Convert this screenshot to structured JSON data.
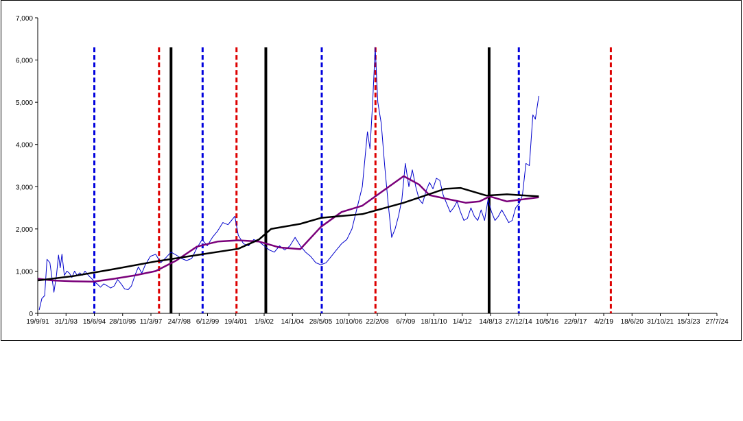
{
  "chart_data": {
    "type": "line",
    "title": "",
    "xlabel": "",
    "ylabel": "",
    "ylim": [
      0,
      7000
    ],
    "y_ticks": [
      0,
      1000,
      2000,
      3000,
      4000,
      5000,
      6000,
      7000
    ],
    "y_tick_labels": [
      "0",
      "1,000",
      "2,000",
      "3,000",
      "4,000",
      "5,000",
      "6,000",
      "7,000"
    ],
    "x_axis": {
      "type": "date",
      "start": "1991-09-19",
      "end": "2024-07-27"
    },
    "x_tick_labels": [
      {
        "date": "1991-09-19",
        "label": "19/9/91"
      },
      {
        "date": "1993-01-31",
        "label": "31/1/93"
      },
      {
        "date": "1994-06-15",
        "label": "15/6/94"
      },
      {
        "date": "1995-10-28",
        "label": "28/10/95"
      },
      {
        "date": "1997-03-11",
        "label": "11/3/97"
      },
      {
        "date": "1998-07-24",
        "label": "24/7/98"
      },
      {
        "date": "1999-12-06",
        "label": "6/12/99"
      },
      {
        "date": "2001-04-19",
        "label": "19/4/01"
      },
      {
        "date": "2002-09-01",
        "label": "1/9/02"
      },
      {
        "date": "2004-01-14",
        "label": "14/1/04"
      },
      {
        "date": "2005-05-28",
        "label": "28/5/05"
      },
      {
        "date": "2006-10-10",
        "label": "10/10/06"
      },
      {
        "date": "2008-02-22",
        "label": "22/2/08"
      },
      {
        "date": "2009-07-06",
        "label": "6/7/09"
      },
      {
        "date": "2010-11-18",
        "label": "18/11/10"
      },
      {
        "date": "2012-04-01",
        "label": "1/4/12"
      },
      {
        "date": "2013-08-14",
        "label": "14/8/13"
      },
      {
        "date": "2014-12-27",
        "label": "27/12/14"
      },
      {
        "date": "2016-05-10",
        "label": "10/5/16"
      },
      {
        "date": "2017-09-22",
        "label": "22/9/17"
      },
      {
        "date": "2019-02-04",
        "label": "4/2/19"
      },
      {
        "date": "2020-06-18",
        "label": "18/6/20"
      },
      {
        "date": "2021-10-31",
        "label": "31/10/21"
      },
      {
        "date": "2023-03-15",
        "label": "15/3/23"
      },
      {
        "date": "2024-07-27",
        "label": "27/7/24"
      }
    ],
    "grid": false,
    "legend": "none",
    "series": [
      {
        "color": "#0000cc",
        "stroke": "thin",
        "points": [
          [
            "1991-10-15",
            80
          ],
          [
            "1991-12-01",
            350
          ],
          [
            "1992-01-20",
            420
          ],
          [
            "1992-03-01",
            1280
          ],
          [
            "1992-04-20",
            1200
          ],
          [
            "1992-06-01",
            800
          ],
          [
            "1992-07-01",
            500
          ],
          [
            "1992-08-15",
            900
          ],
          [
            "1992-09-20",
            1380
          ],
          [
            "1992-10-20",
            1080
          ],
          [
            "1992-11-20",
            1400
          ],
          [
            "1993-01-01",
            900
          ],
          [
            "1993-02-15",
            1000
          ],
          [
            "1993-04-01",
            950
          ],
          [
            "1993-05-15",
            850
          ],
          [
            "1993-07-01",
            1000
          ],
          [
            "1993-08-15",
            900
          ],
          [
            "1993-10-01",
            960
          ],
          [
            "1993-11-15",
            900
          ],
          [
            "1994-01-01",
            1000
          ],
          [
            "1994-03-01",
            900
          ],
          [
            "1994-05-01",
            820
          ],
          [
            "1994-06-15",
            750
          ],
          [
            "1994-08-01",
            700
          ],
          [
            "1994-10-01",
            620
          ],
          [
            "1994-12-01",
            700
          ],
          [
            "1995-02-01",
            650
          ],
          [
            "1995-04-01",
            600
          ],
          [
            "1995-06-01",
            650
          ],
          [
            "1995-08-01",
            800
          ],
          [
            "1995-10-01",
            700
          ],
          [
            "1995-12-01",
            580
          ],
          [
            "1996-02-01",
            560
          ],
          [
            "1996-04-01",
            650
          ],
          [
            "1996-06-01",
            900
          ],
          [
            "1996-08-01",
            1100
          ],
          [
            "1996-10-01",
            950
          ],
          [
            "1996-12-01",
            1150
          ],
          [
            "1997-03-01",
            1350
          ],
          [
            "1997-06-01",
            1400
          ],
          [
            "1997-09-01",
            1200
          ],
          [
            "1997-12-01",
            1320
          ],
          [
            "1998-03-01",
            1450
          ],
          [
            "1998-06-01",
            1380
          ],
          [
            "1998-09-01",
            1300
          ],
          [
            "1998-12-01",
            1250
          ],
          [
            "1999-03-01",
            1300
          ],
          [
            "1999-06-01",
            1550
          ],
          [
            "1999-09-01",
            1750
          ],
          [
            "1999-12-01",
            1600
          ],
          [
            "2000-03-01",
            1800
          ],
          [
            "2000-06-01",
            1950
          ],
          [
            "2000-09-01",
            2150
          ],
          [
            "2000-12-01",
            2100
          ],
          [
            "2001-02-01",
            2200
          ],
          [
            "2001-04-01",
            2300
          ],
          [
            "2001-06-01",
            1850
          ],
          [
            "2001-09-01",
            1650
          ],
          [
            "2001-12-01",
            1600
          ],
          [
            "2002-03-01",
            1750
          ],
          [
            "2002-06-01",
            1700
          ],
          [
            "2002-09-01",
            1600
          ],
          [
            "2002-12-01",
            1500
          ],
          [
            "2003-03-01",
            1450
          ],
          [
            "2003-06-01",
            1600
          ],
          [
            "2003-09-01",
            1500
          ],
          [
            "2003-12-01",
            1600
          ],
          [
            "2004-03-01",
            1800
          ],
          [
            "2004-06-01",
            1600
          ],
          [
            "2004-09-01",
            1450
          ],
          [
            "2004-12-01",
            1350
          ],
          [
            "2005-03-01",
            1200
          ],
          [
            "2005-06-01",
            1150
          ],
          [
            "2005-09-01",
            1200
          ],
          [
            "2005-12-01",
            1350
          ],
          [
            "2006-03-01",
            1500
          ],
          [
            "2006-06-01",
            1650
          ],
          [
            "2006-09-01",
            1750
          ],
          [
            "2006-12-01",
            2000
          ],
          [
            "2007-03-01",
            2500
          ],
          [
            "2007-06-01",
            3000
          ],
          [
            "2007-09-01",
            4300
          ],
          [
            "2007-10-15",
            3900
          ],
          [
            "2007-12-01",
            5000
          ],
          [
            "2008-01-15",
            6300
          ],
          [
            "2008-03-01",
            5000
          ],
          [
            "2008-05-01",
            4500
          ],
          [
            "2008-07-01",
            3500
          ],
          [
            "2008-09-01",
            2600
          ],
          [
            "2008-11-01",
            1800
          ],
          [
            "2009-01-01",
            2000
          ],
          [
            "2009-03-01",
            2300
          ],
          [
            "2009-05-01",
            2700
          ],
          [
            "2009-07-01",
            3550
          ],
          [
            "2009-09-01",
            3000
          ],
          [
            "2009-11-01",
            3400
          ],
          [
            "2010-01-01",
            3000
          ],
          [
            "2010-03-01",
            2700
          ],
          [
            "2010-05-01",
            2600
          ],
          [
            "2010-07-01",
            2900
          ],
          [
            "2010-09-01",
            3100
          ],
          [
            "2010-11-01",
            2950
          ],
          [
            "2011-01-01",
            3200
          ],
          [
            "2011-03-01",
            3150
          ],
          [
            "2011-05-01",
            2800
          ],
          [
            "2011-07-01",
            2600
          ],
          [
            "2011-09-01",
            2400
          ],
          [
            "2011-11-01",
            2500
          ],
          [
            "2012-01-01",
            2650
          ],
          [
            "2012-03-01",
            2400
          ],
          [
            "2012-05-01",
            2200
          ],
          [
            "2012-07-01",
            2250
          ],
          [
            "2012-09-01",
            2500
          ],
          [
            "2012-11-01",
            2300
          ],
          [
            "2013-01-01",
            2200
          ],
          [
            "2013-03-01",
            2450
          ],
          [
            "2013-05-01",
            2200
          ],
          [
            "2013-07-01",
            2700
          ],
          [
            "2013-09-01",
            2400
          ],
          [
            "2013-11-01",
            2200
          ],
          [
            "2014-01-01",
            2300
          ],
          [
            "2014-03-01",
            2450
          ],
          [
            "2014-05-01",
            2300
          ],
          [
            "2014-07-01",
            2150
          ],
          [
            "2014-09-01",
            2200
          ],
          [
            "2014-11-01",
            2500
          ],
          [
            "2015-01-01",
            2600
          ],
          [
            "2015-03-01",
            2800
          ],
          [
            "2015-05-01",
            3550
          ],
          [
            "2015-07-01",
            3500
          ],
          [
            "2015-09-01",
            4700
          ],
          [
            "2015-10-15",
            4600
          ],
          [
            "2015-12-15",
            5150
          ]
        ]
      },
      {
        "color": "#7a007a",
        "stroke": "medium",
        "points": [
          [
            "1991-09-25",
            820
          ],
          [
            "1992-06-01",
            780
          ],
          [
            "1993-06-01",
            760
          ],
          [
            "1994-06-01",
            750
          ],
          [
            "1995-06-01",
            820
          ],
          [
            "1996-06-01",
            900
          ],
          [
            "1997-06-01",
            1000
          ],
          [
            "1998-06-01",
            1250
          ],
          [
            "1999-06-01",
            1580
          ],
          [
            "2000-06-01",
            1700
          ],
          [
            "2001-06-01",
            1730
          ],
          [
            "2002-06-01",
            1700
          ],
          [
            "2003-06-01",
            1560
          ],
          [
            "2004-06-01",
            1520
          ],
          [
            "2005-06-01",
            2050
          ],
          [
            "2006-06-01",
            2400
          ],
          [
            "2007-06-01",
            2550
          ],
          [
            "2008-06-01",
            2900
          ],
          [
            "2009-06-01",
            3250
          ],
          [
            "2010-03-01",
            3050
          ],
          [
            "2010-09-01",
            2800
          ],
          [
            "2011-06-01",
            2720
          ],
          [
            "2012-06-01",
            2620
          ],
          [
            "2013-02-01",
            2650
          ],
          [
            "2013-08-01",
            2770
          ],
          [
            "2014-06-01",
            2650
          ],
          [
            "2015-12-15",
            2750
          ]
        ]
      },
      {
        "color": "#000000",
        "stroke": "medium",
        "points": [
          [
            "1991-09-25",
            780
          ],
          [
            "1993-06-01",
            880
          ],
          [
            "1995-06-01",
            1050
          ],
          [
            "1997-06-01",
            1230
          ],
          [
            "1999-06-01",
            1380
          ],
          [
            "2001-06-01",
            1530
          ],
          [
            "2002-06-01",
            1750
          ],
          [
            "2003-01-01",
            2000
          ],
          [
            "2004-06-01",
            2120
          ],
          [
            "2005-06-01",
            2260
          ],
          [
            "2007-06-01",
            2350
          ],
          [
            "2009-06-01",
            2620
          ],
          [
            "2011-06-01",
            2950
          ],
          [
            "2012-03-01",
            2970
          ],
          [
            "2013-06-01",
            2790
          ],
          [
            "2014-06-01",
            2820
          ],
          [
            "2015-12-15",
            2770
          ]
        ]
      }
    ],
    "vertical_lines": [
      {
        "date": "1994-06-15",
        "color": "#0000dd",
        "style": "dashed"
      },
      {
        "date": "1997-08-01",
        "color": "#dd0000",
        "style": "dashed"
      },
      {
        "date": "1998-03-01",
        "color": "#000000",
        "style": "solid"
      },
      {
        "date": "1999-09-10",
        "color": "#0000dd",
        "style": "dashed"
      },
      {
        "date": "2001-05-01",
        "color": "#dd0000",
        "style": "dashed"
      },
      {
        "date": "2002-10-01",
        "color": "#000000",
        "style": "solid"
      },
      {
        "date": "2005-06-15",
        "color": "#0000dd",
        "style": "dashed"
      },
      {
        "date": "2008-01-20",
        "color": "#dd0000",
        "style": "dashed"
      },
      {
        "date": "2013-07-20",
        "color": "#000000",
        "style": "solid"
      },
      {
        "date": "2014-12-27",
        "color": "#0000dd",
        "style": "dashed"
      },
      {
        "date": "2019-06-10",
        "color": "#dd0000",
        "style": "dashed"
      }
    ],
    "vertical_line_value": 6300
  }
}
